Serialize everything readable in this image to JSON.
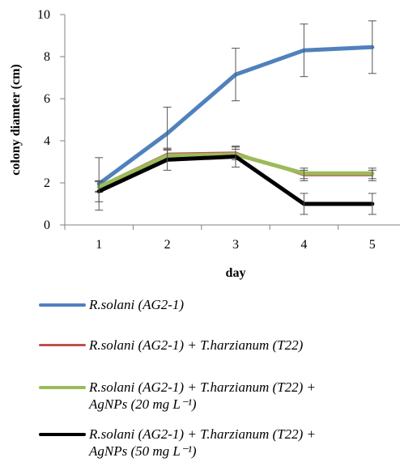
{
  "chart_data": {
    "type": "line",
    "title": "",
    "xlabel": "day",
    "ylabel": "colony diamter (cm)",
    "x": [
      1,
      2,
      3,
      4,
      5
    ],
    "ylim": [
      0,
      10
    ],
    "yticks": [
      0,
      2,
      4,
      6,
      8,
      10
    ],
    "grid": false,
    "legend_placement": "bottom",
    "series": [
      {
        "name": "R.solani (AG2-1)",
        "color": "#4f81bd",
        "values": [
          1.95,
          4.35,
          7.15,
          8.3,
          8.45
        ],
        "errors": [
          1.25,
          1.25,
          1.25,
          1.25,
          1.25
        ]
      },
      {
        "name": "R.solani (AG2-1) + T.harzianum (T22)",
        "color": "#c0504d",
        "values": [
          1.85,
          3.4,
          3.45,
          2.35,
          2.35
        ],
        "errors": [
          0.25,
          0.25,
          0.25,
          0.25,
          0.25
        ]
      },
      {
        "name": "R.solani (AG2-1) + T.harzianum (T22) + AgNPs (20 mg L⁻¹)",
        "color": "#9bbb59",
        "values": [
          1.8,
          3.3,
          3.35,
          2.45,
          2.45
        ],
        "errors": [
          0.25,
          0.25,
          0.25,
          0.25,
          0.25
        ]
      },
      {
        "name": "R.solani (AG2-1) + T.harzianum (T22) + AgNPs (50 mg L⁻¹)",
        "color": "#000000",
        "values": [
          1.6,
          3.1,
          3.25,
          1.0,
          1.0
        ],
        "errors": [
          0.5,
          0.5,
          0.5,
          0.5,
          0.5
        ]
      }
    ]
  },
  "legend": {
    "items": [
      {
        "text_lines": [
          "R.solani (AG2-1)"
        ]
      },
      {
        "text_lines": [
          "R.solani (AG2-1) + T.harzianum (T22)"
        ]
      },
      {
        "text_lines": [
          "R.solani (AG2-1) + T.harzianum (T22) +",
          "AgNPs (20 mg L⁻¹)"
        ]
      },
      {
        "text_lines": [
          "R.solani (AG2-1) + T.harzianum (T22) +",
          "AgNPs (50 mg L⁻¹)"
        ]
      }
    ]
  }
}
